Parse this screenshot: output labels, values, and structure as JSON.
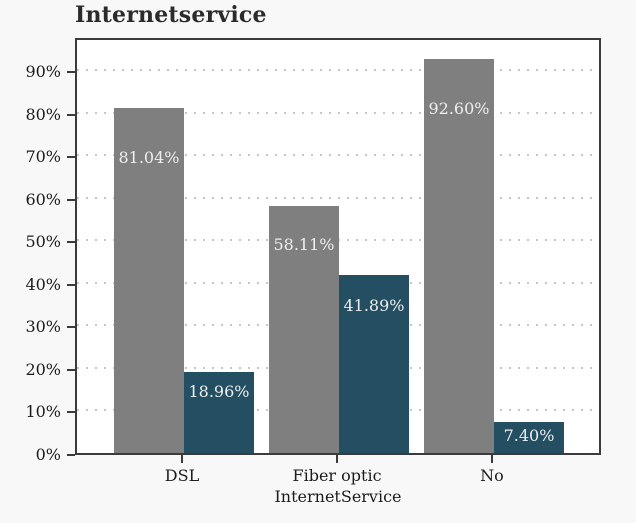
{
  "figure": {
    "title": "Internetservice",
    "x_axis_title": "InternetService"
  },
  "chart_data": {
    "type": "bar",
    "title": "Internetservice",
    "xlabel": "InternetService",
    "ylabel": "",
    "categories": [
      "DSL",
      "Fiber optic",
      "No"
    ],
    "series": [
      {
        "name": "gray-series",
        "color": "#7f7f7f",
        "values": [
          81.04,
          58.11,
          92.6
        ],
        "labels": [
          "81.04%",
          "58.11%",
          "92.60%"
        ]
      },
      {
        "name": "teal-series",
        "color": "#244f63",
        "values": [
          18.96,
          41.89,
          7.4
        ],
        "labels": [
          "18.96%",
          "41.89%",
          "7.40%"
        ]
      }
    ],
    "y_ticks": [
      "0%",
      "10%",
      "20%",
      "30%",
      "40%",
      "50%",
      "60%",
      "70%",
      "80%",
      "90%"
    ],
    "y_tick_values": [
      0,
      10,
      20,
      30,
      40,
      50,
      60,
      70,
      80,
      90
    ],
    "ylim": [
      0,
      98
    ],
    "grid": "horizontal-dotted",
    "legend": "none",
    "colors": {
      "figure_background": "#f8f8f8",
      "plot_background": "#ffffff",
      "frame": "#3b3b3b",
      "gridline": "#c6c6c6",
      "bar_label_text": "#eeeeee",
      "tick_label_text": "#1c1c1c",
      "title_text": "#2b2b2b"
    }
  }
}
